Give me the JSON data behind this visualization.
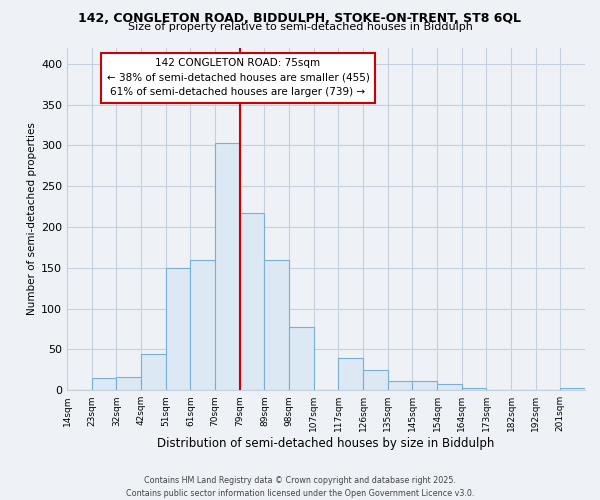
{
  "title": "142, CONGLETON ROAD, BIDDULPH, STOKE-ON-TRENT, ST8 6QL",
  "subtitle": "Size of property relative to semi-detached houses in Biddulph",
  "xlabel": "Distribution of semi-detached houses by size in Biddulph",
  "ylabel": "Number of semi-detached properties",
  "bin_labels": [
    "14sqm",
    "23sqm",
    "32sqm",
    "42sqm",
    "51sqm",
    "61sqm",
    "70sqm",
    "79sqm",
    "89sqm",
    "98sqm",
    "107sqm",
    "117sqm",
    "126sqm",
    "135sqm",
    "145sqm",
    "154sqm",
    "164sqm",
    "173sqm",
    "182sqm",
    "192sqm",
    "201sqm"
  ],
  "bar_heights": [
    0,
    15,
    16,
    44,
    150,
    160,
    303,
    217,
    160,
    77,
    0,
    40,
    25,
    11,
    11,
    7,
    3,
    0,
    0,
    0,
    3
  ],
  "bar_color": "#dce8f3",
  "bar_edge_color": "#7aafd4",
  "vline_color": "#cc0000",
  "annotation_title": "142 CONGLETON ROAD: 75sqm",
  "annotation_line1": "← 38% of semi-detached houses are smaller (455)",
  "annotation_line2": "61% of semi-detached houses are larger (739) →",
  "ylim": [
    0,
    420
  ],
  "yticks": [
    0,
    50,
    100,
    150,
    200,
    250,
    300,
    350,
    400
  ],
  "footnote1": "Contains HM Land Registry data © Crown copyright and database right 2025.",
  "footnote2": "Contains public sector information licensed under the Open Government Licence v3.0.",
  "bg_color": "#eef2f7",
  "plot_bg_color": "#eef2f7",
  "grid_color": "#c5d0de"
}
